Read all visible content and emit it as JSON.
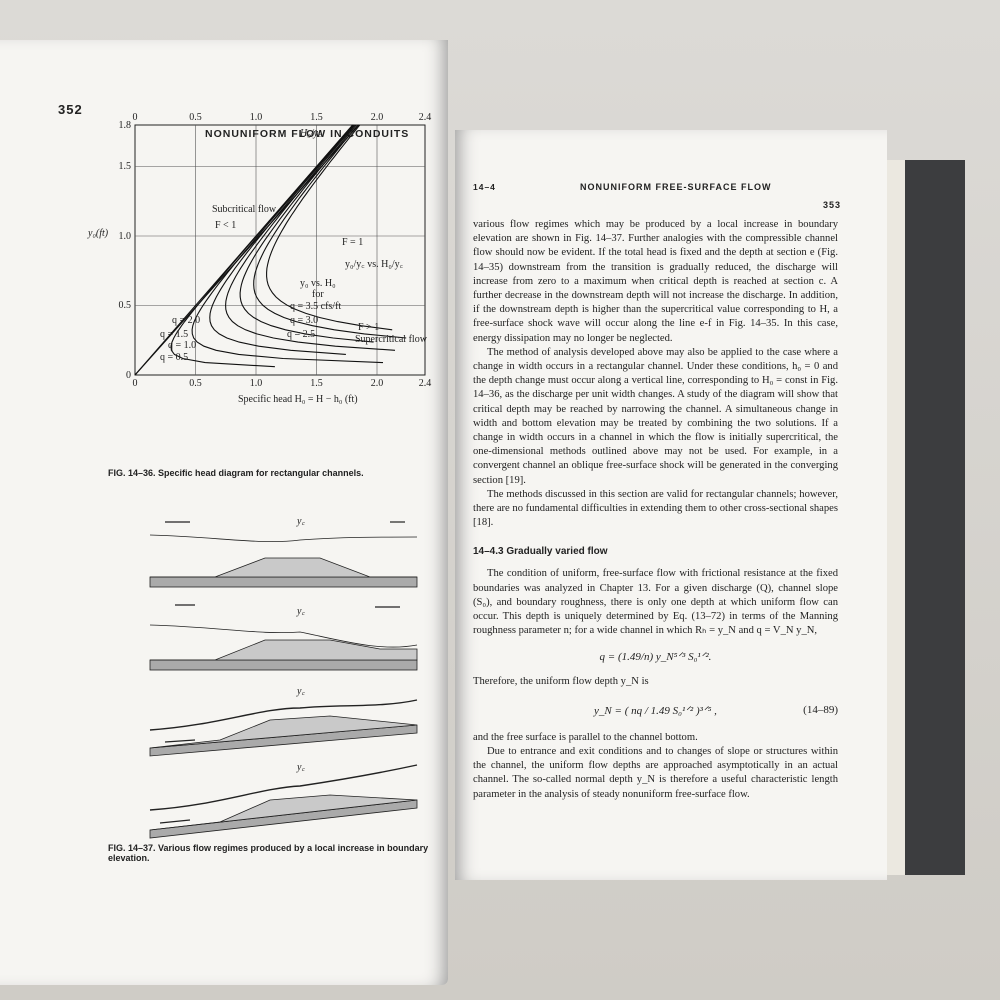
{
  "left_page": {
    "page_number": "352",
    "running_head": "NONUNIFORM FLOW IN CONDUITS",
    "figure_36": {
      "top_ticks": [
        "0",
        "0.5",
        "1.0",
        "1.5",
        "2.0",
        "2.4"
      ],
      "top_axis_label": "H₀/y꜀",
      "left_ticks": [
        "1.8",
        "1.5",
        "1.0",
        "0.5",
        "0"
      ],
      "y_axis_label": "y₀(ft)",
      "bottom_ticks": [
        "0",
        "0.5",
        "1.0",
        "1.5",
        "2.0",
        "2.4"
      ],
      "x_axis_label": "Specific head    H₀ = H − h₀ (ft)",
      "annotations": [
        "F < 1",
        "Subcritical flow",
        "F = 1",
        "y₀ vs. H₀",
        "for",
        "q = 3.5 cfs/ft",
        "F > 1",
        "Supercritical flow",
        "y₀/y꜀ vs. H₀/y꜀"
      ],
      "curve_labels": [
        "q = 0.5",
        "q = 1.0",
        "q = 1.5",
        "q = 2.0",
        "q = 2.5",
        "q = 3.0"
      ],
      "caption": "FIG. 14–36.  Specific head diagram for rectangular channels."
    },
    "figure_37": {
      "labels": [
        "y꜀",
        "y꜀",
        "y꜀",
        "y꜀"
      ],
      "caption": "FIG. 14–37.  Various flow regimes produced by a local increase in boundary elevation."
    }
  },
  "right_page": {
    "section_number": "14–4",
    "running_head": "NONUNIFORM FREE-SURFACE FLOW",
    "page_number": "353",
    "paragraphs_top": [
      "various flow regimes which may be produced by a local increase in boundary elevation are shown in Fig. 14–37. Further analogies with the compressible channel flow should now be evident. If the total head is fixed and the depth at section e (Fig. 14–35) downstream from the transition is gradually reduced, the discharge will increase from zero to a maximum when critical depth is reached at section c. A further decrease in the downstream depth will not increase the discharge. In addition, if the downstream depth is higher than the supercritical value corresponding to H, a free-surface shock wave will occur along the line e-f in Fig. 14–35. In this case, energy dissipation may no longer be neglected.",
      "The method of analysis developed above may also be applied to the case where a change in width occurs in a rectangular channel. Under these conditions, h₀ = 0 and the depth change must occur along a vertical line, corresponding to H₀ = const in Fig. 14–36, as the discharge per unit width changes. A study of the diagram will show that critical depth may be reached by narrowing the channel. A simultaneous change in width and bottom elevation may be treated by combining the two solutions. If a change in width occurs in a channel in which the flow is initially supercritical, the one-dimensional methods outlined above may not be used. For example, in a convergent channel an oblique free-surface shock will be generated in the converging section [19].",
      "The methods discussed in this section are valid for rectangular channels; however, there are no fundamental difficulties in extending them to other cross-sectional shapes [18]."
    ],
    "section_heading": "14–4.3  Gradually varied flow",
    "paragraph_uniform": "The condition of uniform, free-surface flow with frictional resistance at the fixed boundaries was analyzed in Chapter 13. For a given discharge (Q), channel slope (S₀), and boundary roughness, there is only one depth at which uniform flow can occur. This depth is uniquely determined by Eq. (13–72) in terms of the Manning roughness parameter n; for a wide channel in which Rₕ = y_N and q = V_N y_N,",
    "equation_1": "q = (1.49/n) y_N⁵ᐟ³ S₀¹ᐟ².",
    "paragraph_therefore": "Therefore, the uniform flow depth y_N is",
    "equation_2": "y_N = ( nq / 1.49 S₀¹ᐟ² )³ᐟ⁵ ,",
    "equation_2_number": "(14–89)",
    "paragraph_parallel": "and the free surface is parallel to the channel bottom.",
    "paragraph_last": "Due to entrance and exit conditions and to changes of slope or structures within the channel, the uniform flow depths are approached asymptotically in an actual channel. The so-called normal depth y_N is therefore a useful characteristic length parameter in the analysis of steady nonuniform free-surface flow."
  }
}
